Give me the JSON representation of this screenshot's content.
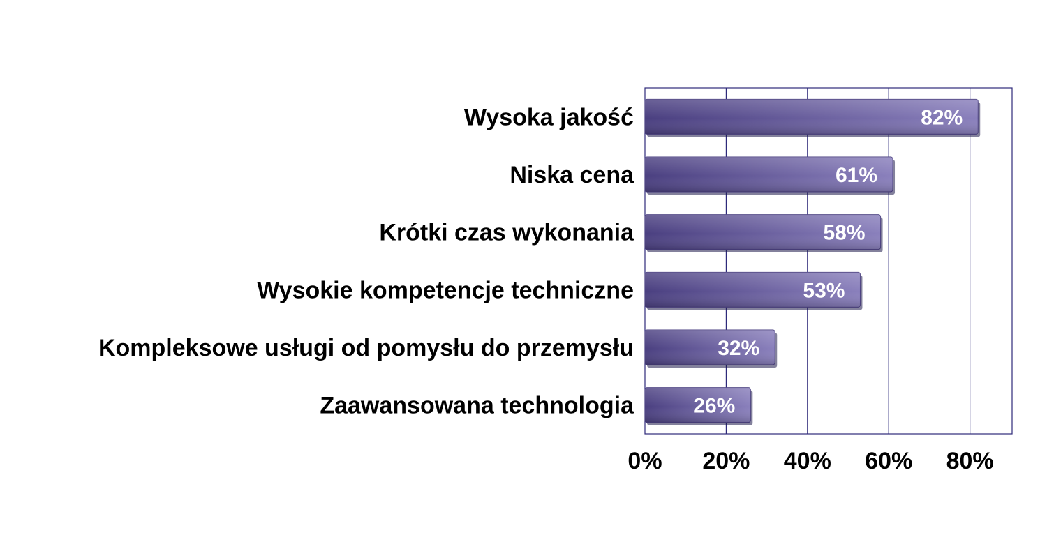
{
  "chart_data": {
    "type": "bar",
    "orientation": "horizontal",
    "categories": [
      "Wysoka jakość",
      "Niska cena",
      "Krótki czas wykonania",
      "Wysokie kompetencje techniczne",
      "Kompleksowe usługi od pomysłu do przemysłu",
      "Zaawansowana technologia"
    ],
    "values": [
      82,
      61,
      58,
      53,
      32,
      26
    ],
    "value_labels": [
      "82%",
      "61%",
      "58%",
      "53%",
      "32%",
      "26%"
    ],
    "xlim": [
      0,
      90
    ],
    "xticks": [
      0,
      20,
      40,
      60,
      80
    ],
    "xtick_labels": [
      "0%",
      "20%",
      "40%",
      "60%",
      "80%"
    ],
    "grid": true,
    "legend": "none",
    "colors": {
      "bar": "#6a5fa0",
      "bar_light": "#8a80bc",
      "bar_dark": "#4a3f80",
      "grid": "#2e2a7a"
    }
  }
}
